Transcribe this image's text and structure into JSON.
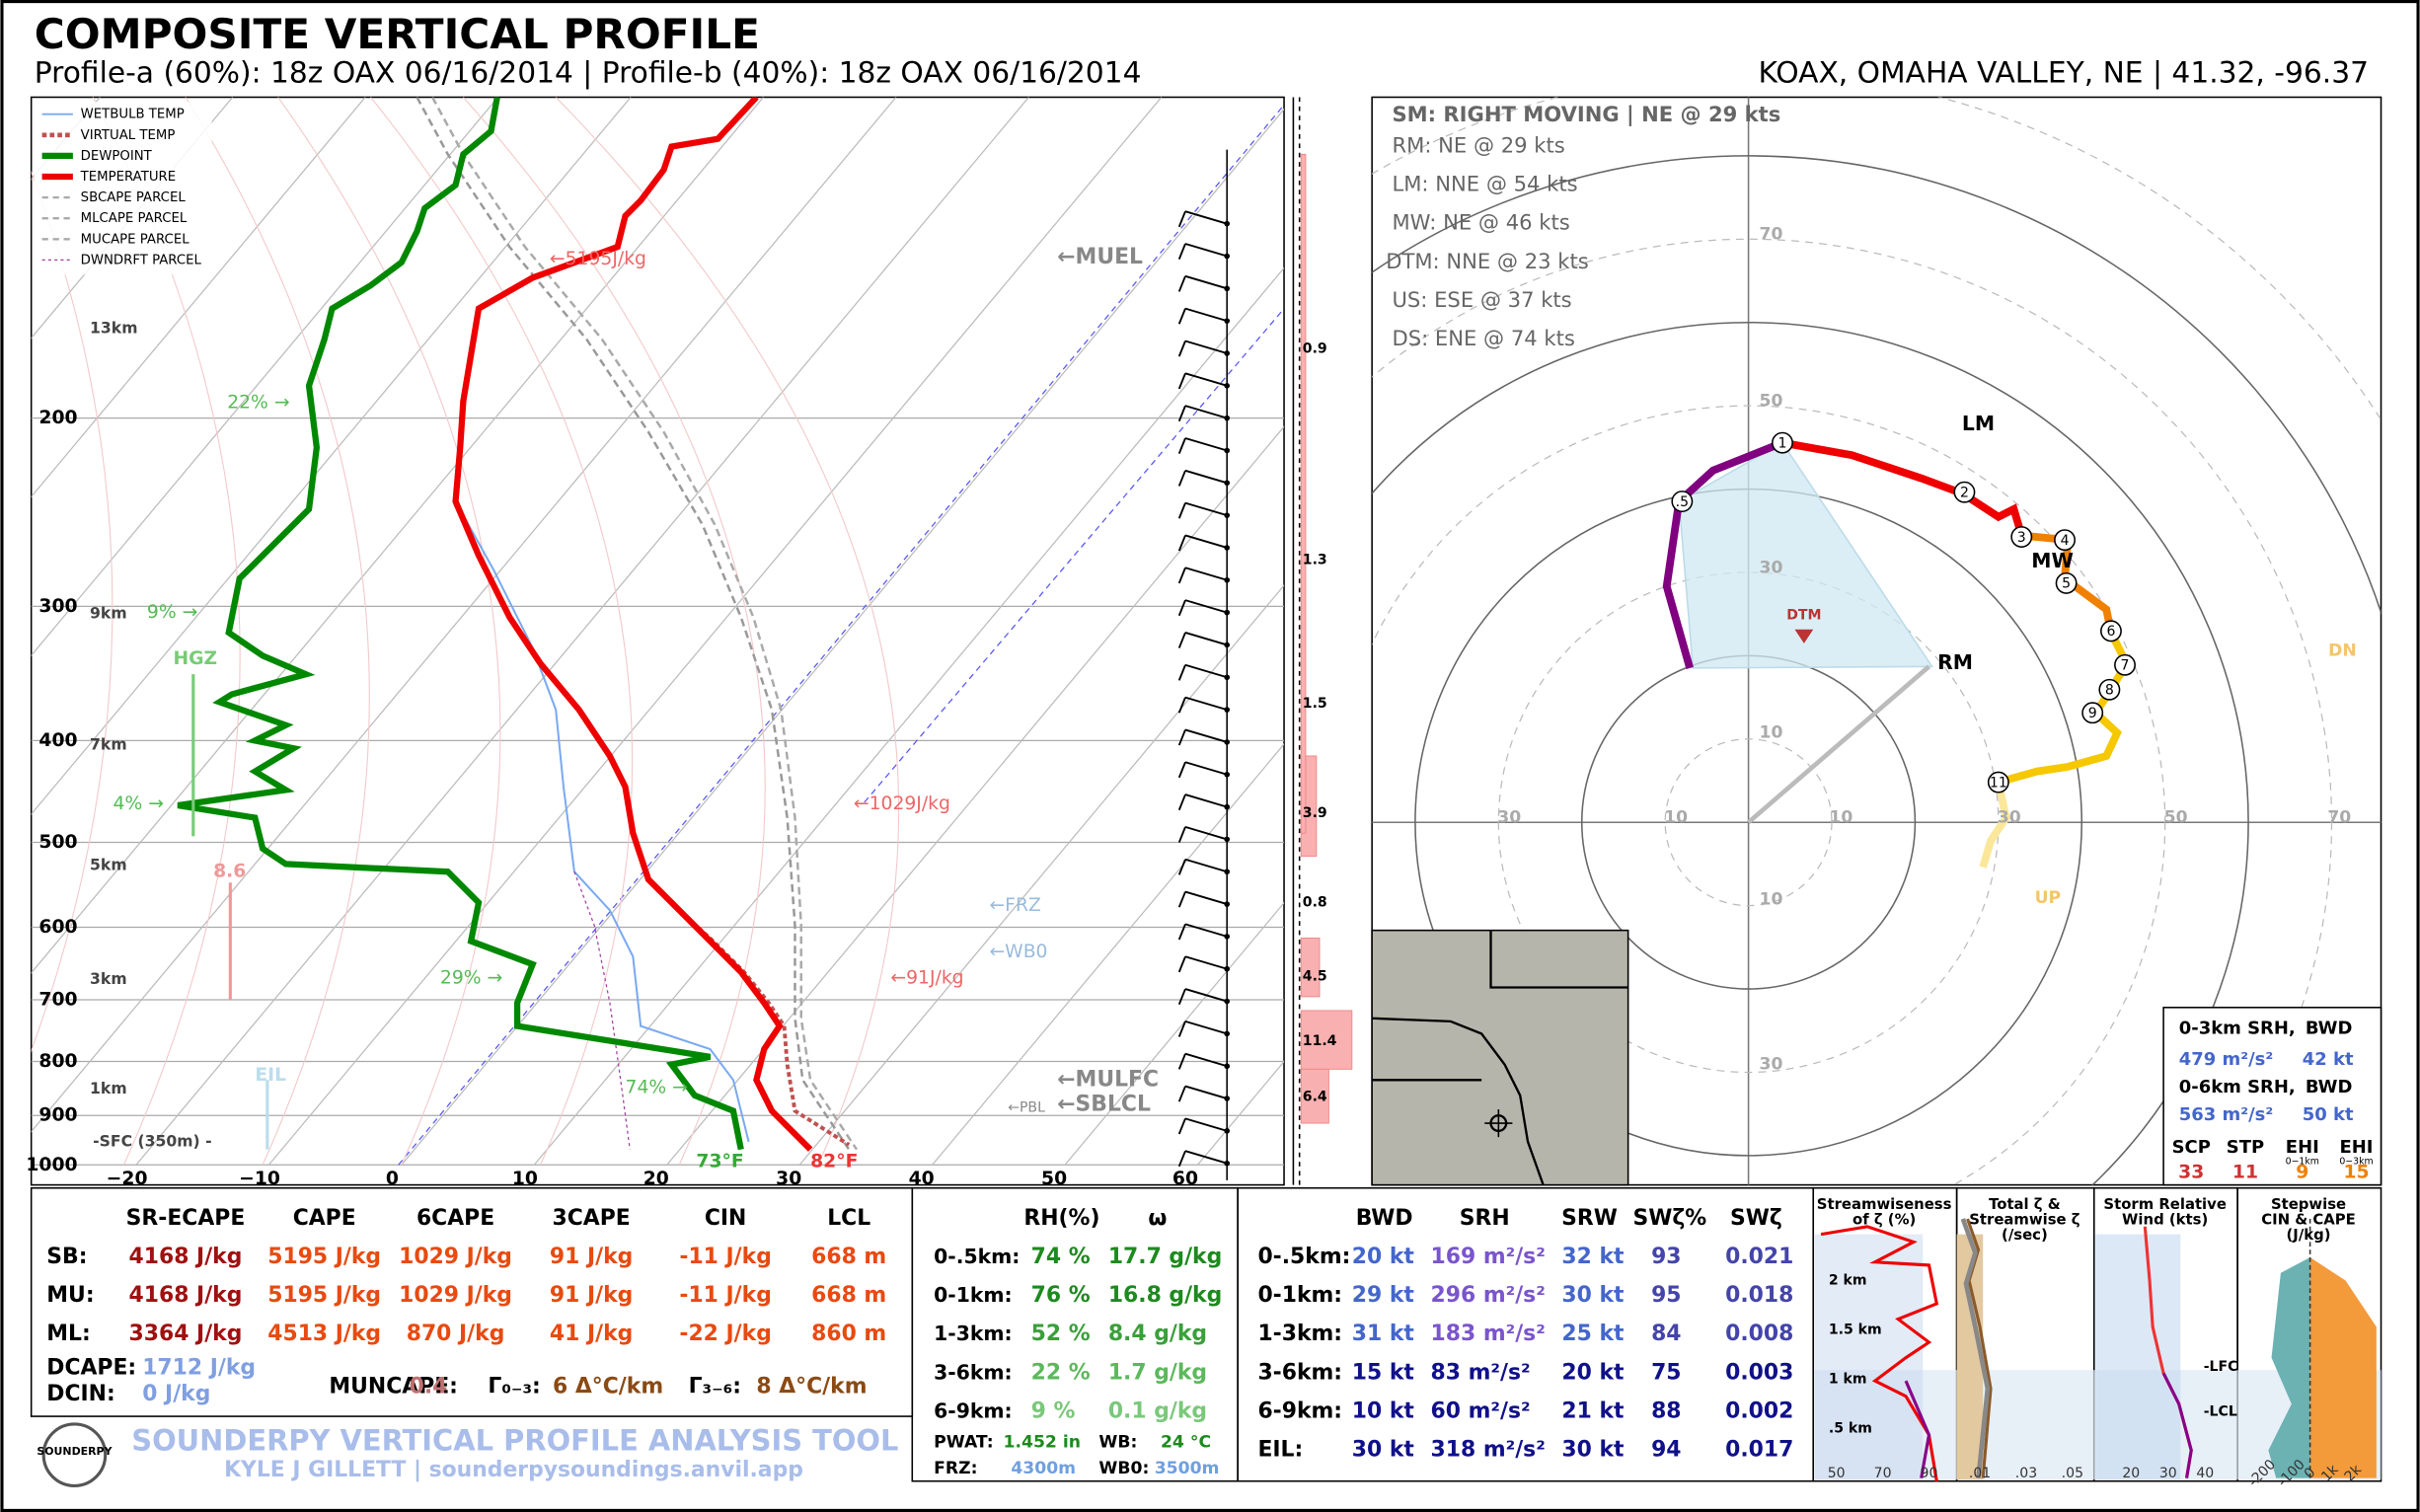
{
  "header": {
    "title": "COMPOSITE VERTICAL PROFILE",
    "subtitle": "Profile-a (60%): 18z OAX 06/16/2014 | Profile-b (40%): 18z OAX 06/16/2014",
    "station": "KOAX, OMAHA VALLEY, NE | 41.32, -96.37"
  },
  "skewt": {
    "legend": [
      "WETBULB TEMP",
      "VIRTUAL TEMP",
      "DEWPOINT",
      "TEMPERATURE",
      "SBCAPE PARCEL",
      "MLCAPE PARCEL",
      "MUCAPE PARCEL",
      "DWNDRFT PARCEL"
    ],
    "pressure_labels": [
      "200",
      "300",
      "400",
      "500",
      "600",
      "700",
      "800",
      "900",
      "1000"
    ],
    "height_labels": [
      "13km",
      "9km",
      "7km",
      "5km",
      "3km",
      "1km",
      "-SFC (350m) -"
    ],
    "temperature_labels": [
      "−20",
      "−10",
      "0",
      "10",
      "20",
      "30",
      "40",
      "50",
      "60"
    ],
    "annotations": [
      "←5195J/kg",
      "←1029J/kg",
      "←91J/kg",
      "←MUEL",
      "←FRZ",
      "←WB0",
      "←MULFC",
      "←SBLCL",
      "←PBL",
      "22% →",
      "9% →",
      "4% →",
      "29% →",
      "74% →",
      "HGZ",
      "8.6",
      "EIL",
      "73°F",
      "82°F"
    ],
    "inflow_labels": [
      "0.9",
      "1.3",
      "1.5",
      "3.9",
      "0.8",
      "4.5",
      "11.4",
      "6.4"
    ]
  },
  "hodograph": {
    "motions": [
      "SM: RIGHT MOVING | NE @ 29 kts",
      "RM: NE @ 29 kts",
      "LM: NNE @ 54 kts",
      "MW: NE @ 46 kts",
      "DTM: NNE @ 23 kts",
      "US: ESE @ 37 kts",
      "DS: ENE @ 74 kts"
    ],
    "ring_labels_vertical": [
      "70",
      "50",
      "30",
      "10",
      "10",
      "30"
    ],
    "ring_labels_horizontal": [
      "30",
      "10",
      "10",
      "30",
      "50",
      "70"
    ],
    "markers": [
      "LM",
      "MW",
      "RM",
      "DTM",
      "DN",
      "UP"
    ],
    "points": [
      ".5",
      "1",
      "2",
      "3",
      "4",
      "5",
      "6",
      "7",
      "8",
      "9",
      "11"
    ],
    "box": {
      "srh03_label": "0-3km SRH,",
      "bwd03_label": "BWD",
      "srh03": "479 m²/s²",
      "bwd03": "42 kt",
      "srh06_label": "0-6km SRH,",
      "bwd06_label": "BWD",
      "srh06": "563 m²/s²",
      "bwd06": "50 kt",
      "headers": [
        "SCP",
        "STP",
        "EHI",
        "EHI"
      ],
      "subs": [
        "0−1km",
        "0−3km"
      ],
      "values": [
        "33",
        "11",
        "9",
        "15"
      ]
    }
  },
  "parameters": {
    "headers": [
      "SR-ECAPE",
      "CAPE",
      "6CAPE",
      "3CAPE",
      "CIN",
      "LCL"
    ],
    "rows": [
      {
        "label": "SB:",
        "values": [
          "4168 J/kg",
          "5195 J/kg",
          "1029 J/kg",
          "91 J/kg",
          "-11 J/kg",
          "668 m"
        ]
      },
      {
        "label": "MU:",
        "values": [
          "4168 J/kg",
          "5195 J/kg",
          "1029 J/kg",
          "91 J/kg",
          "-11 J/kg",
          "668 m"
        ]
      },
      {
        "label": "ML:",
        "values": [
          "3364 J/kg",
          "4513 J/kg",
          "870 J/kg",
          "41 J/kg",
          "-22 J/kg",
          "860 m"
        ]
      }
    ],
    "dcape_label": "DCAPE:",
    "dcape": "1712 J/kg",
    "dcin_label": "DCIN:",
    "dcin": "0 J/kg",
    "muncape_label": "MUNCAPE:",
    "muncape": "0.4",
    "lapse03_label": "Γ₀₋₃:",
    "lapse03": "6 Δ°C/km",
    "lapse36_label": "Γ₃₋₆:",
    "lapse36": "8 Δ°C/km"
  },
  "footer": {
    "title": "SOUNDERPY VERTICAL PROFILE ANALYSIS TOOL",
    "credit": "KYLE J GILLETT | sounderpysoundings.anvil.app",
    "logo": "SOUNDERPY"
  },
  "moisture": {
    "headers": [
      "RH(%)",
      "ω"
    ],
    "rows": [
      {
        "label": "0-.5km:",
        "rh": "74 %",
        "w": "17.7 g/kg"
      },
      {
        "label": "0-1km:",
        "rh": "76 %",
        "w": "16.8 g/kg"
      },
      {
        "label": "1-3km:",
        "rh": "52 %",
        "w": "8.4 g/kg"
      },
      {
        "label": "3-6km:",
        "rh": "22 %",
        "w": "1.7 g/kg"
      },
      {
        "label": "6-9km:",
        "rh": "9 %",
        "w": "0.1 g/kg"
      }
    ],
    "pwat_label": "PWAT:",
    "pwat": "1.452 in",
    "wb_label": "WB:",
    "wb": "24 °C",
    "frz_label": "FRZ:",
    "frz": "4300m",
    "wb0_label": "WB0:",
    "wb0": "3500m"
  },
  "kinematics": {
    "headers": [
      "BWD",
      "SRH",
      "SRW",
      "SWζ%",
      "SWζ"
    ],
    "rows": [
      {
        "label": "0-.5km:",
        "values": [
          "20 kt",
          "169 m²/s²",
          "32 kt",
          "93",
          "0.021"
        ]
      },
      {
        "label": "0-1km:",
        "values": [
          "29 kt",
          "296 m²/s²",
          "30 kt",
          "95",
          "0.018"
        ]
      },
      {
        "label": "1-3km:",
        "values": [
          "31 kt",
          "183 m²/s²",
          "25 kt",
          "84",
          "0.008"
        ]
      },
      {
        "label": "3-6km:",
        "values": [
          "15 kt",
          "83 m²/s²",
          "20 kt",
          "75",
          "0.003"
        ]
      },
      {
        "label": "6-9km:",
        "values": [
          "10 kt",
          "60 m²/s²",
          "21 kt",
          "88",
          "0.002"
        ]
      },
      {
        "label": "EIL:",
        "values": [
          "30 kt",
          "318 m²/s²",
          "30 kt",
          "94",
          "0.017"
        ]
      }
    ]
  },
  "panels": [
    {
      "title": [
        "Streamwiseness",
        "of ζ (%)"
      ],
      "ticks": [
        "50",
        "70",
        "90"
      ]
    },
    {
      "title": [
        "Total ζ &",
        "Streamwise ζ",
        "(/sec)"
      ],
      "ticks": [
        ".01",
        ".03",
        ".05"
      ]
    },
    {
      "title": [
        "Storm Relative",
        "Wind (kts)"
      ],
      "ticks": [
        "20",
        "30",
        "40"
      ]
    },
    {
      "title": [
        "Stepwise",
        "CIN & CAPE",
        "(J/kg)"
      ],
      "ticks": [
        "-200",
        "-100",
        "0",
        "1k",
        "2k"
      ]
    }
  ],
  "panel_heights": [
    "2 km",
    "1.5 km",
    "1 km",
    ".5 km"
  ],
  "panel_levels": [
    "-LFC",
    "-LCL"
  ]
}
